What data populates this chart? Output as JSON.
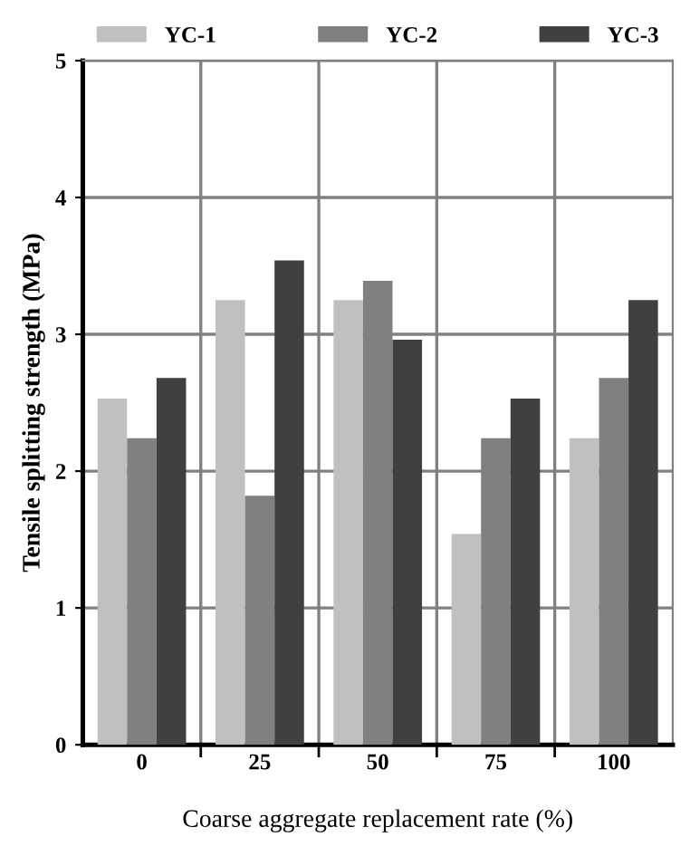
{
  "chart_data": {
    "type": "bar",
    "xlabel": "Coarse aggregate replacement rate (%)",
    "ylabel": "Tensile splitting strength (MPa)",
    "categories": [
      "0",
      "25",
      "50",
      "75",
      "100"
    ],
    "series": [
      {
        "name": "YC-1",
        "color": "#c0c0c0",
        "values": [
          2.53,
          3.25,
          3.25,
          1.54,
          2.24
        ]
      },
      {
        "name": "YC-2",
        "color": "#808080",
        "values": [
          2.24,
          1.82,
          3.39,
          2.24,
          2.68
        ]
      },
      {
        "name": "YC-3",
        "color": "#404040",
        "values": [
          2.68,
          3.54,
          2.96,
          2.53,
          3.25
        ]
      }
    ],
    "ylim": [
      0,
      5
    ],
    "yticks": [
      0,
      1,
      2,
      3,
      4,
      5
    ],
    "grid": true,
    "legend": "top"
  }
}
